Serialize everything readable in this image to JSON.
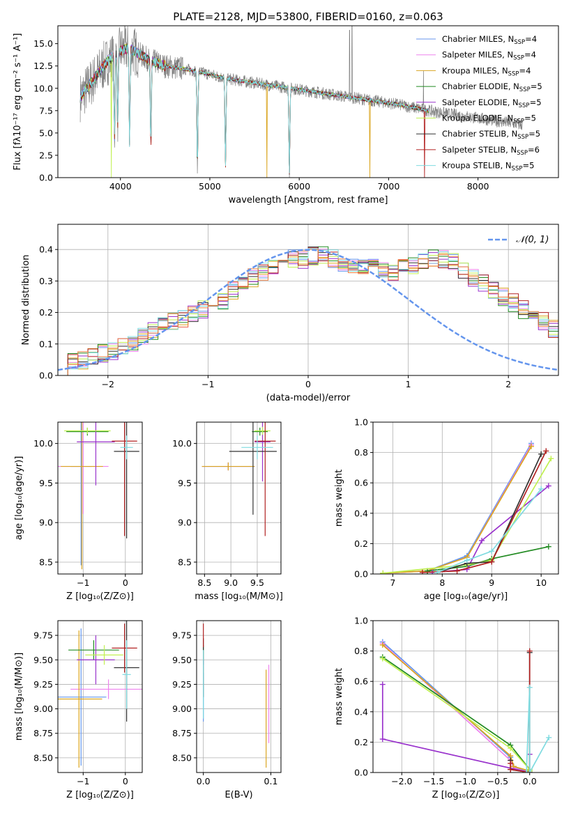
{
  "colors": {
    "Chabrier MILES": "#6495ed",
    "Salpeter MILES": "#ee82ee",
    "Kroupa MILES": "#daa520",
    "Chabrier ELODIE": "#228b22",
    "Salpeter ELODIE": "#9932cc",
    "Kroupa ELODIE": "#c0f050",
    "Chabrier STELIB": "#333333",
    "Salpeter STELIB": "#b22222",
    "Kroupa STELIB": "#7fdbe0",
    "data": "#808080",
    "normal": "#6495ed",
    "hist_orange": "#f08040"
  },
  "chart_data": [
    {
      "id": "spectrum",
      "type": "line",
      "title": "PLATE=2128, MJD=53800, FIBERID=0160, z=0.063",
      "xlabel": "wavelength [Angstrom, rest frame]",
      "ylabel": "Flux [fλ10⁻¹⁷ erg cm⁻² s⁻¹ A⁻¹]",
      "xlim": [
        3300,
        8900
      ],
      "ylim": [
        0,
        17
      ],
      "xticks": [
        4000,
        5000,
        6000,
        7000,
        8000
      ],
      "yticks": [
        0.0,
        2.5,
        5.0,
        7.5,
        10.0,
        12.5,
        15.0
      ],
      "legend_position": "top-right",
      "legend": [
        {
          "model": "Chabrier MILES",
          "label": "Chabrier MILES, N",
          "sub": "SSP",
          "suffix": "=4"
        },
        {
          "model": "Salpeter MILES",
          "label": "Salpeter MILES, N",
          "sub": "SSP",
          "suffix": "=4"
        },
        {
          "model": "Kroupa MILES",
          "label": "Kroupa MILES, N",
          "sub": "SSP",
          "suffix": "=4"
        },
        {
          "model": "Chabrier ELODIE",
          "label": "Chabrier ELODIE, N",
          "sub": "SSP",
          "suffix": "=5"
        },
        {
          "model": "Salpeter ELODIE",
          "label": "Salpeter ELODIE, N",
          "sub": "SSP",
          "suffix": "=5"
        },
        {
          "model": "Kroupa ELODIE",
          "label": "Kroupa ELODIE, N",
          "sub": "SSP",
          "suffix": "=5"
        },
        {
          "model": "Chabrier STELIB",
          "label": "Chabrier STELIB, N",
          "sub": "SSP",
          "suffix": "=5"
        },
        {
          "model": "Salpeter STELIB",
          "label": "Salpeter STELIB, N",
          "sub": "SSP",
          "suffix": "=6"
        },
        {
          "model": "Kroupa STELIB",
          "label": "Kroupa STELIB, N",
          "sub": "SSP",
          "suffix": "=5"
        }
      ],
      "continuum_wavelength": [
        3550,
        3700,
        3850,
        4000,
        4100,
        4300,
        4500,
        4700,
        4900,
        5100,
        5300,
        5500,
        5700,
        5900,
        6100,
        6300,
        6500,
        6700,
        6900,
        7100,
        7300,
        7500,
        7700,
        7900,
        8100,
        8300,
        8500
      ],
      "continuum_flux": [
        9.0,
        11.0,
        13.0,
        14.2,
        14.5,
        13.3,
        12.5,
        12.2,
        11.8,
        11.3,
        10.9,
        10.6,
        10.3,
        10.0,
        9.7,
        9.4,
        9.1,
        8.8,
        8.5,
        8.2,
        7.8,
        7.4,
        7.1,
        6.8,
        6.5,
        6.2,
        5.9
      ],
      "absorption_lines": [
        [
          3934,
          9.0
        ],
        [
          3969,
          8.0
        ],
        [
          4102,
          10.5
        ],
        [
          4340,
          9.5
        ],
        [
          4861,
          11.0
        ],
        [
          5175,
          10.0
        ],
        [
          5890,
          9.5
        ]
      ],
      "data_spikes": [
        [
          6563,
          16.5
        ],
        [
          6590,
          17.0
        ],
        [
          7390,
          12.0
        ]
      ],
      "model_dropouts": [
        [
          3900,
          0.0,
          "Kroupa ELODIE"
        ],
        [
          5640,
          0.0,
          "Kroupa MILES"
        ],
        [
          6790,
          0.0,
          "Kroupa MILES"
        ],
        [
          7400,
          0.0,
          "Salpeter STELIB"
        ]
      ]
    },
    {
      "id": "residuals",
      "type": "histogram",
      "xlabel": "(data-model)/error",
      "ylabel": "Normed distribution",
      "xlim": [
        -2.5,
        2.5
      ],
      "ylim": [
        0,
        0.48
      ],
      "xticks": [
        -2,
        -1,
        0,
        1,
        2
      ],
      "yticks": [
        0.0,
        0.1,
        0.2,
        0.3,
        0.4
      ],
      "legend": {
        "label": "𝒩(0, 1)"
      },
      "bin_width": 0.1,
      "base_profile": [
        0.03,
        0.04,
        0.05,
        0.06,
        0.07,
        0.08,
        0.09,
        0.1,
        0.12,
        0.14,
        0.16,
        0.17,
        0.18,
        0.2,
        0.21,
        0.22,
        0.24,
        0.27,
        0.29,
        0.31,
        0.33,
        0.35,
        0.36,
        0.37,
        0.37,
        0.38,
        0.38,
        0.37,
        0.36,
        0.35,
        0.34,
        0.34,
        0.33,
        0.33,
        0.34,
        0.35,
        0.36,
        0.37,
        0.37,
        0.36,
        0.33,
        0.31,
        0.29,
        0.27,
        0.25,
        0.23,
        0.21,
        0.19,
        0.17,
        0.15,
        0.13,
        0.12,
        0.1,
        0.09,
        0.08,
        0.07,
        0.06,
        0.05,
        0.05,
        0.04,
        0.04,
        0.03,
        0.03,
        0.02,
        0.02,
        0.02,
        0.02,
        0.02,
        0.02,
        0.02,
        0.02,
        0.02,
        0.02,
        0.02,
        0.02,
        0.02,
        0.02,
        0.02,
        0.02,
        0.02,
        0.02,
        0.02,
        0.02,
        0.02,
        0.02,
        0.02,
        0.02,
        0.02,
        0.02,
        0.02,
        0.02,
        0.02,
        0.02,
        0.02,
        0.02,
        0.02,
        0.02,
        0.02,
        0.02,
        0.02
      ]
    },
    {
      "id": "age-vs-Z",
      "type": "errorbar",
      "xlabel": "Z [log₁₀(Z/Z⊙)]",
      "ylabel": "age  [log₁₀(age/yr)]",
      "xlim": [
        -1.6,
        0.4
      ],
      "ylim": [
        8.35,
        10.27
      ],
      "xticks": [
        -1,
        0
      ],
      "yticks": [
        8.5,
        9.0,
        9.5,
        10.0
      ],
      "points": [
        {
          "model": "Chabrier MILES",
          "x": -1.05,
          "xerr": 0.25,
          "y": 9.71,
          "yerr": 1.25
        },
        {
          "model": "Salpeter MILES",
          "x": -1.0,
          "xerr": 0.6,
          "y": 9.71,
          "yerr": 0.6
        },
        {
          "model": "Kroupa MILES",
          "x": -1.03,
          "xerr": 0.5,
          "y": 9.71,
          "yerr": 1.3
        },
        {
          "model": "Chabrier ELODIE",
          "x": -0.9,
          "xerr": 0.5,
          "y": 10.15,
          "yerr": 0.05
        },
        {
          "model": "Salpeter ELODIE",
          "x": -0.7,
          "xerr": 0.45,
          "y": 10.02,
          "yerr": 0.55
        },
        {
          "model": "Kroupa ELODIE",
          "x": -0.9,
          "xerr": 0.55,
          "y": 10.16,
          "yerr": 0.04
        },
        {
          "model": "Chabrier STELIB",
          "x": 0.03,
          "xerr": 0.3,
          "y": 9.9,
          "yerr": 1.1
        },
        {
          "model": "Salpeter STELIB",
          "x": -0.02,
          "xerr": 0.3,
          "y": 10.03,
          "yerr": 1.2
        },
        {
          "model": "Kroupa STELIB",
          "x": 0.03,
          "xerr": 0.15,
          "y": 9.95,
          "yerr": 0.15
        }
      ]
    },
    {
      "id": "age-vs-mass",
      "type": "errorbar",
      "xlabel": "mass [log₁₀(M/M⊙)]",
      "ylabel": "",
      "xlim": [
        8.35,
        9.95
      ],
      "ylim": [
        8.35,
        10.27
      ],
      "xticks": [
        8.5,
        9.0,
        9.5
      ],
      "yticks": [
        8.5,
        9.0,
        9.5,
        10.0
      ],
      "points": [
        {
          "model": "Chabrier MILES",
          "x": 8.95,
          "xerr": 0.5,
          "y": 9.71,
          "yerr": 0.05
        },
        {
          "model": "Salpeter MILES",
          "x": 8.95,
          "xerr": 0.5,
          "y": 9.71,
          "yerr": 0.05
        },
        {
          "model": "Kroupa MILES",
          "x": 8.95,
          "xerr": 0.5,
          "y": 9.71,
          "yerr": 0.05
        },
        {
          "model": "Chabrier ELODIE",
          "x": 9.55,
          "xerr": 0.15,
          "y": 10.15,
          "yerr": 0.05
        },
        {
          "model": "Salpeter ELODIE",
          "x": 9.6,
          "xerr": 0.15,
          "y": 10.02,
          "yerr": 0.5
        },
        {
          "model": "Kroupa ELODIE",
          "x": 9.6,
          "xerr": 0.15,
          "y": 10.16,
          "yerr": 0.05
        },
        {
          "model": "Chabrier STELIB",
          "x": 9.42,
          "xerr": 0.45,
          "y": 9.9,
          "yerr": 0.8
        },
        {
          "model": "Salpeter STELIB",
          "x": 9.65,
          "xerr": 0.2,
          "y": 10.03,
          "yerr": 1.2
        },
        {
          "model": "Kroupa STELIB",
          "x": 9.5,
          "xerr": 0.3,
          "y": 9.95,
          "yerr": 0.15
        }
      ]
    },
    {
      "id": "massweight-vs-age",
      "type": "line",
      "xlabel": "age  [log₁₀(age/yr)]",
      "ylabel": "mass weight",
      "xlim": [
        6.6,
        10.35
      ],
      "ylim": [
        0,
        1
      ],
      "xticks": [
        7,
        8,
        9,
        10
      ],
      "yticks": [
        0.0,
        0.2,
        0.4,
        0.6,
        0.8,
        1.0
      ],
      "series": [
        {
          "model": "Chabrier MILES",
          "x": [
            6.8,
            7.7,
            8.5,
            9.8
          ],
          "y": [
            0.005,
            0.02,
            0.12,
            0.86
          ]
        },
        {
          "model": "Salpeter MILES",
          "x": [
            6.8,
            7.7,
            8.5,
            9.8
          ],
          "y": [
            0.005,
            0.02,
            0.11,
            0.85
          ]
        },
        {
          "model": "Kroupa MILES",
          "x": [
            6.8,
            7.7,
            8.5,
            9.8
          ],
          "y": [
            0.005,
            0.02,
            0.11,
            0.84
          ]
        },
        {
          "model": "Chabrier ELODIE",
          "x": [
            7.7,
            8.5,
            9.0,
            10.15
          ],
          "y": [
            0.02,
            0.05,
            0.1,
            0.18
          ]
        },
        {
          "model": "Salpeter ELODIE",
          "x": [
            7.8,
            8.5,
            8.8,
            10.15
          ],
          "y": [
            0.01,
            0.03,
            0.22,
            0.58
          ]
        },
        {
          "model": "Kroupa ELODIE",
          "x": [
            6.8,
            8.5,
            9.0,
            10.2
          ],
          "y": [
            0.005,
            0.06,
            0.09,
            0.76
          ]
        },
        {
          "model": "Chabrier STELIB",
          "x": [
            7.9,
            8.5,
            9.0,
            10.0
          ],
          "y": [
            0.01,
            0.07,
            0.08,
            0.79
          ]
        },
        {
          "model": "Salpeter STELIB",
          "x": [
            7.6,
            8.3,
            9.0,
            10.1
          ],
          "y": [
            0.01,
            0.02,
            0.08,
            0.81
          ]
        },
        {
          "model": "Kroupa STELIB",
          "x": [
            7.9,
            8.5,
            9.0,
            10.0
          ],
          "y": [
            0.01,
            0.09,
            0.15,
            0.56
          ]
        }
      ]
    },
    {
      "id": "mass-vs-Z",
      "type": "errorbar",
      "xlabel": "Z [log₁₀(Z/Z⊙)]",
      "ylabel": "mass [log₁₀(M/M⊙)]",
      "xlim": [
        -1.6,
        0.4
      ],
      "ylim": [
        8.35,
        9.9
      ],
      "xticks": [
        -1,
        0
      ],
      "yticks": [
        8.5,
        8.75,
        9.0,
        9.25,
        9.5,
        9.75
      ],
      "points": [
        {
          "model": "Chabrier MILES",
          "x": -1.05,
          "xerr": 0.6,
          "y": 9.12,
          "yerr": 0.7
        },
        {
          "model": "Salpeter MILES",
          "x": -0.4,
          "xerr": 0.9,
          "y": 9.2,
          "yerr": 0.1
        },
        {
          "model": "Kroupa MILES",
          "x": -1.1,
          "xerr": 0.55,
          "y": 9.1,
          "yerr": 0.7
        },
        {
          "model": "Chabrier ELODIE",
          "x": -0.75,
          "xerr": 0.6,
          "y": 9.6,
          "yerr": 0.1
        },
        {
          "model": "Salpeter ELODIE",
          "x": -0.7,
          "xerr": 0.45,
          "y": 9.5,
          "yerr": 0.25
        },
        {
          "model": "Kroupa ELODIE",
          "x": -0.5,
          "xerr": 0.45,
          "y": 9.55,
          "yerr": 0.1
        },
        {
          "model": "Chabrier STELIB",
          "x": 0.03,
          "xerr": 0.3,
          "y": 9.42,
          "yerr": 0.55
        },
        {
          "model": "Salpeter STELIB",
          "x": -0.02,
          "xerr": 0.3,
          "y": 9.62,
          "yerr": 0.25
        },
        {
          "model": "Kroupa STELIB",
          "x": 0.03,
          "xerr": 0.1,
          "y": 9.35,
          "yerr": 0.35
        }
      ]
    },
    {
      "id": "mass-vs-EBV",
      "type": "errorbar",
      "xlabel": "E(B-V)",
      "ylabel": "",
      "xlim": [
        -0.01,
        0.115
      ],
      "ylim": [
        8.35,
        9.9
      ],
      "xticks": [
        0.0,
        0.1
      ],
      "yticks": [
        8.5,
        8.75,
        9.0,
        9.25,
        9.5,
        9.75
      ],
      "points": [
        {
          "model": "Chabrier MILES",
          "x": 0.0,
          "xerr": 0.0,
          "y": 9.12,
          "yerr": 0.25
        },
        {
          "model": "Salpeter MILES",
          "x": 0.097,
          "xerr": 0.0,
          "y": 9.05,
          "yerr": 0.4
        },
        {
          "model": "Kroupa MILES",
          "x": 0.093,
          "xerr": 0.0,
          "y": 8.9,
          "yerr": 0.5
        },
        {
          "model": "Chabrier ELODIE",
          "x": 0.0,
          "xerr": 0.0,
          "y": 9.6,
          "yerr": 0.05
        },
        {
          "model": "Salpeter ELODIE",
          "x": 0.0,
          "xerr": 0.0,
          "y": 9.5,
          "yerr": 0.05
        },
        {
          "model": "Kroupa ELODIE",
          "x": 0.0,
          "xerr": 0.0,
          "y": 9.55,
          "yerr": 0.05
        },
        {
          "model": "Chabrier STELIB",
          "x": 0.0,
          "xerr": 0.0,
          "y": 9.42,
          "yerr": 0.3
        },
        {
          "model": "Salpeter STELIB",
          "x": 0.0,
          "xerr": 0.0,
          "y": 9.75,
          "yerr": 0.12
        },
        {
          "model": "Kroupa STELIB",
          "x": 0.0,
          "xerr": 0.0,
          "y": 9.25,
          "yerr": 0.35
        }
      ]
    },
    {
      "id": "massweight-vs-Z",
      "type": "line",
      "xlabel": "Z [log₁₀(Z/Z⊙)]",
      "ylabel": "mass weight",
      "xlim": [
        -2.45,
        0.45
      ],
      "ylim": [
        0,
        1
      ],
      "xticks": [
        -2.0,
        -1.5,
        -1.0,
        -0.5,
        0.0
      ],
      "yticks": [
        0.0,
        0.2,
        0.4,
        0.6,
        0.8,
        1.0
      ],
      "series": [
        {
          "model": "Chabrier MILES",
          "x": [
            -2.3,
            -0.3,
            -0.25,
            0.0
          ],
          "y": [
            0.86,
            0.1,
            0.04,
            0.0
          ]
        },
        {
          "model": "Salpeter MILES",
          "x": [
            -2.3,
            -0.3,
            -0.25,
            0.0
          ],
          "y": [
            0.85,
            0.08,
            0.03,
            0.0
          ]
        },
        {
          "model": "Kroupa MILES",
          "x": [
            -2.3,
            -0.3,
            -0.25,
            0.0
          ],
          "y": [
            0.84,
            0.11,
            0.04,
            0.01
          ]
        },
        {
          "model": "Chabrier ELODIE",
          "x": [
            -2.3,
            -0.3,
            0.0,
            0.0
          ],
          "y": [
            0.76,
            0.18,
            0.02,
            0.01
          ]
        },
        {
          "model": "Salpeter ELODIE",
          "x": [
            -2.3,
            -2.3,
            0.0,
            0.0
          ],
          "y": [
            0.58,
            0.22,
            0.0,
            0.12
          ]
        },
        {
          "model": "Kroupa ELODIE",
          "x": [
            -2.3,
            -0.3,
            0.0,
            0.0
          ],
          "y": [
            0.75,
            0.16,
            0.02,
            0.01
          ]
        },
        {
          "model": "Chabrier STELIB",
          "x": [
            -0.3,
            -0.3,
            0.0,
            0.0
          ],
          "y": [
            0.08,
            0.02,
            0.0,
            0.79
          ]
        },
        {
          "model": "Salpeter STELIB",
          "x": [
            -0.3,
            -0.3,
            0.0,
            0.0
          ],
          "y": [
            0.06,
            0.02,
            0.0,
            0.8
          ]
        },
        {
          "model": "Kroupa STELIB",
          "x": [
            -0.05,
            0.0,
            0.0,
            0.3
          ],
          "y": [
            0.0,
            0.56,
            0.0,
            0.23
          ]
        }
      ]
    }
  ]
}
